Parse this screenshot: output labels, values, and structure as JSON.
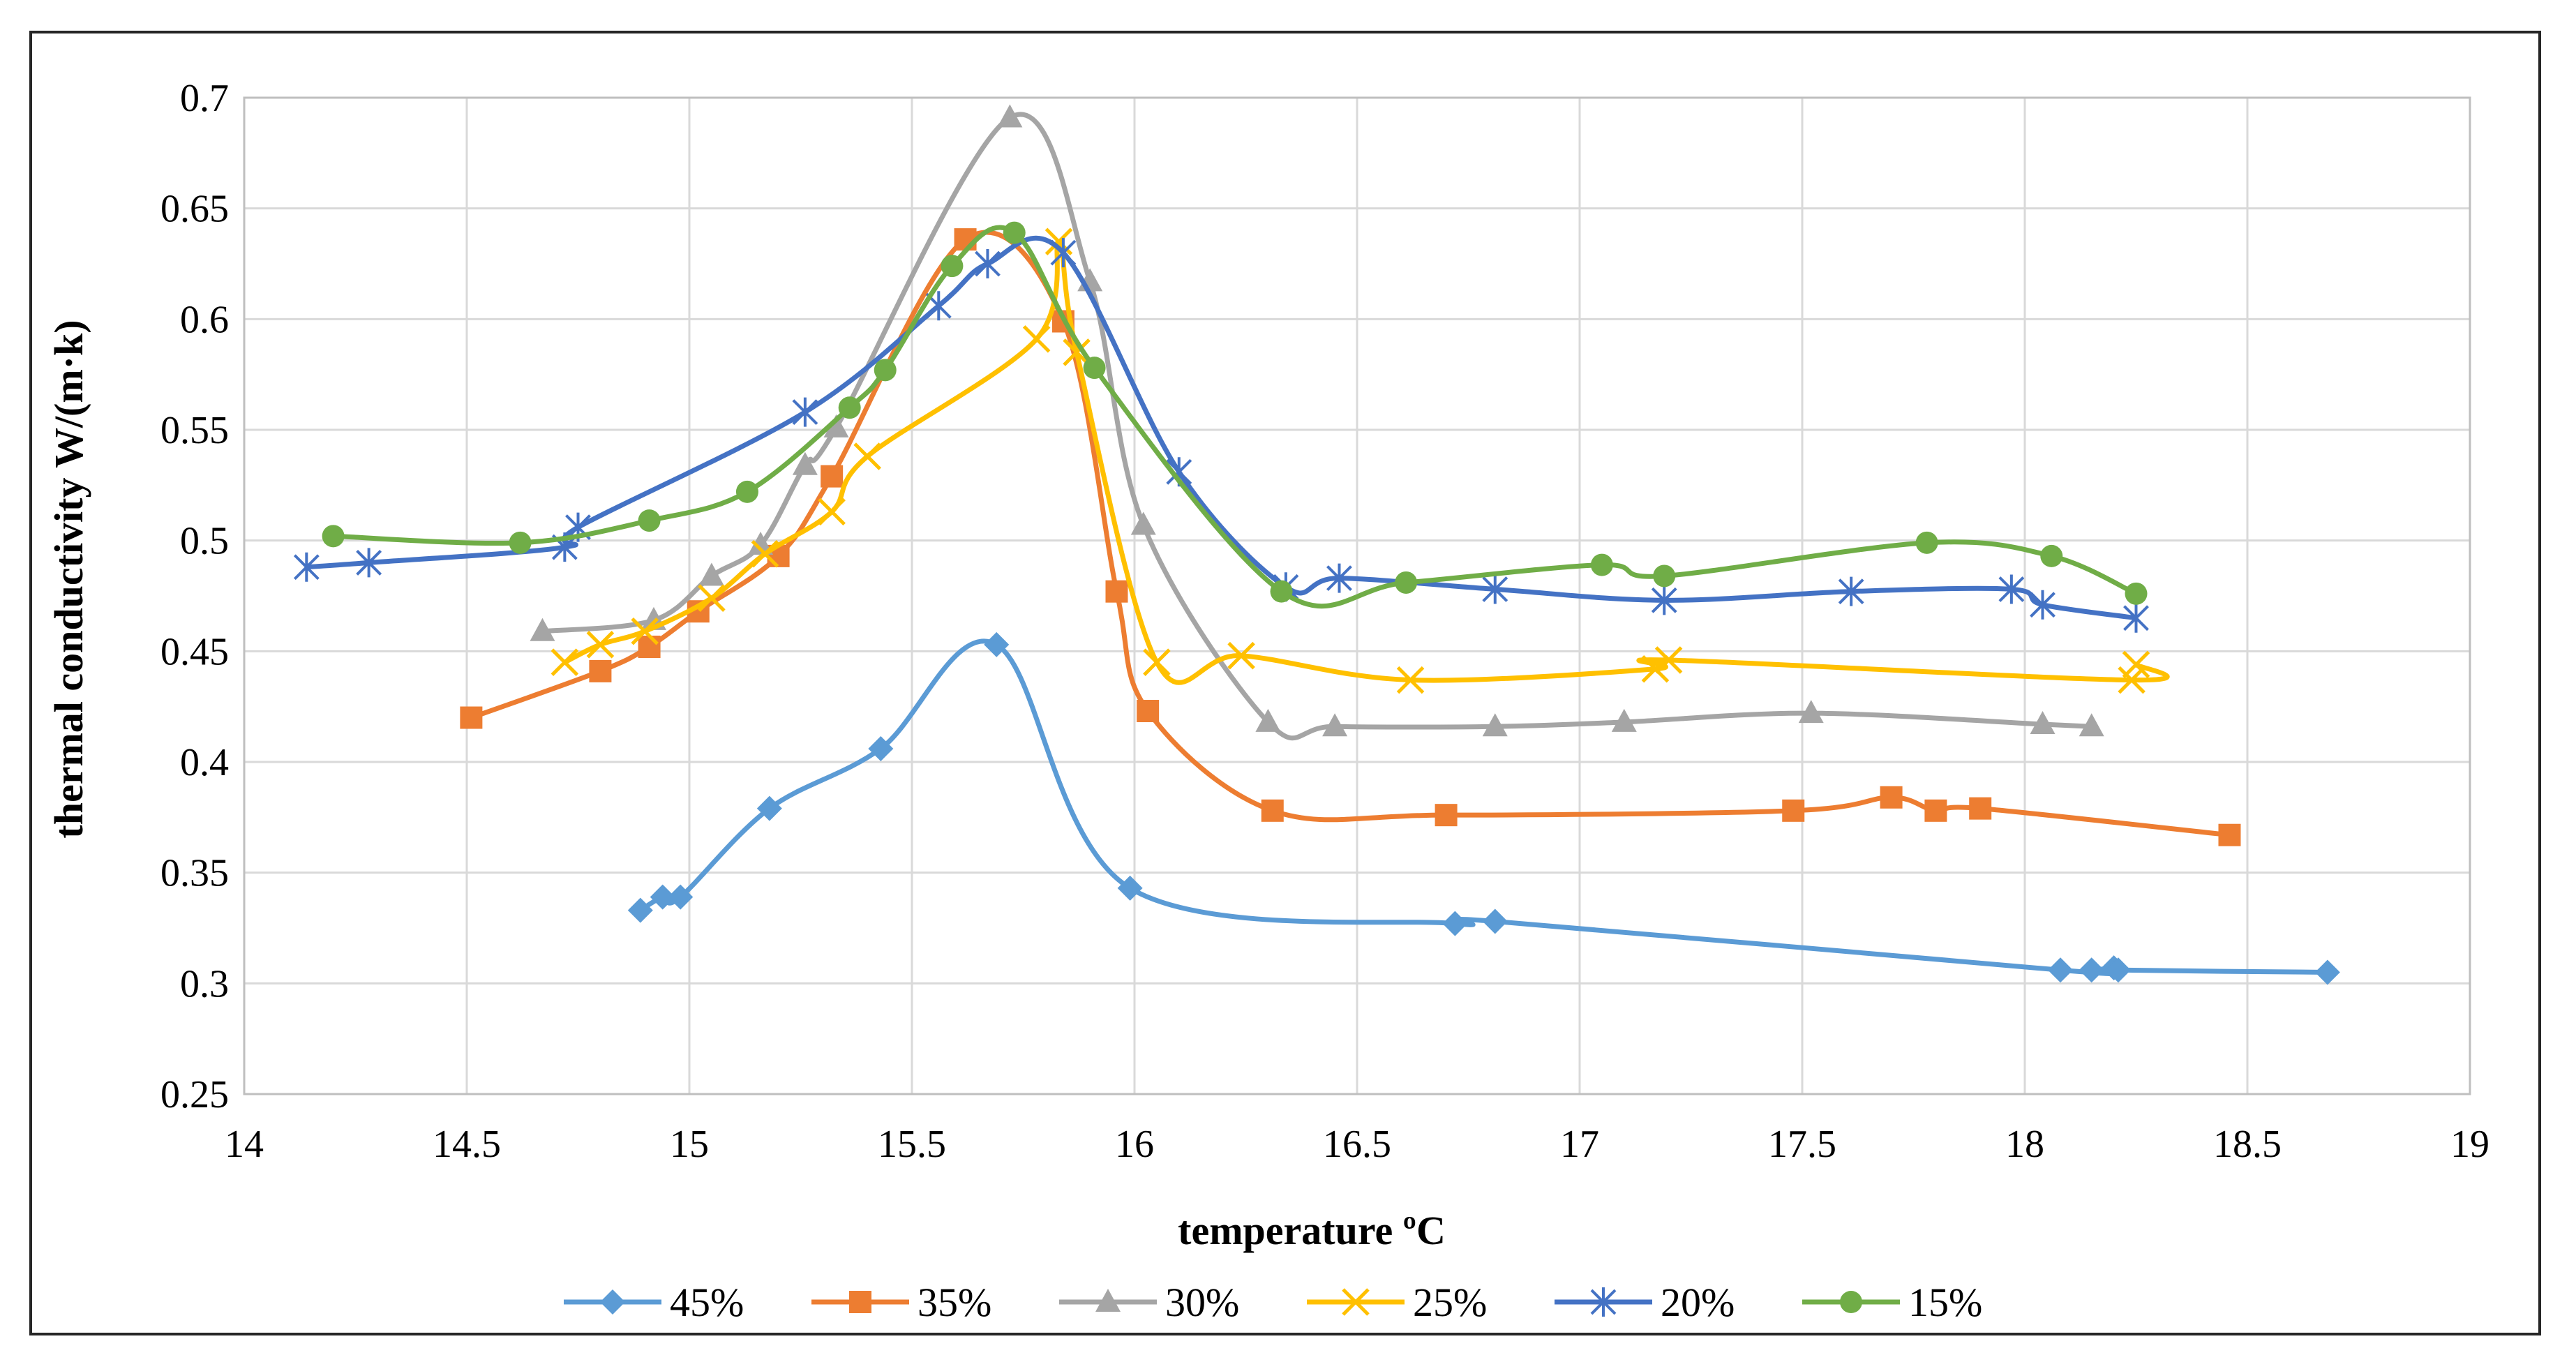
{
  "chart_data": {
    "type": "line",
    "title": "",
    "xlabel": "temperature ºC",
    "ylabel": "thermal conductivity W/(m·k)",
    "xlim": [
      14,
      19
    ],
    "ylim": [
      0.25,
      0.7
    ],
    "xticks": [
      14,
      14.5,
      15,
      15.5,
      16,
      16.5,
      17,
      17.5,
      18,
      18.5,
      19
    ],
    "xtick_labels": [
      "14",
      "14.5",
      "15",
      "15.5",
      "16",
      "16.5",
      "17",
      "17.5",
      "18",
      "18.5",
      "19"
    ],
    "yticks": [
      0.25,
      0.3,
      0.35,
      0.4,
      0.45,
      0.5,
      0.55,
      0.6,
      0.65,
      0.7
    ],
    "ytick_labels": [
      "0.25",
      "0.3",
      "0.35",
      "0.4",
      "0.45",
      "0.5",
      "0.55",
      "0.6",
      "0.65",
      "0.7"
    ],
    "grid": true,
    "legend_position": "bottom",
    "series": [
      {
        "name": "45%",
        "color": "#5B9BD5",
        "marker": "diamond",
        "x": [
          14.89,
          14.94,
          14.98,
          15.18,
          15.43,
          15.69,
          15.99,
          16.72,
          16.81,
          18.08,
          18.15,
          18.2,
          18.21,
          18.68
        ],
        "y": [
          0.333,
          0.339,
          0.339,
          0.379,
          0.406,
          0.453,
          0.343,
          0.327,
          0.328,
          0.306,
          0.306,
          0.307,
          0.306,
          0.305
        ]
      },
      {
        "name": "35%",
        "color": "#ED7D31",
        "marker": "square",
        "x": [
          14.51,
          14.8,
          14.91,
          15.02,
          15.2,
          15.32,
          15.62,
          15.84,
          15.96,
          16.03,
          16.31,
          16.7,
          17.48,
          17.7,
          17.8,
          17.9,
          18.46
        ],
        "y": [
          0.42,
          0.441,
          0.452,
          0.468,
          0.493,
          0.529,
          0.636,
          0.599,
          0.477,
          0.423,
          0.378,
          0.376,
          0.378,
          0.384,
          0.378,
          0.379,
          0.367
        ]
      },
      {
        "name": "30%",
        "color": "#A5A5A5",
        "marker": "triangle",
        "x": [
          14.67,
          14.92,
          15.05,
          15.16,
          15.26,
          15.33,
          15.72,
          15.9,
          16.02,
          16.3,
          16.45,
          16.81,
          17.1,
          17.52,
          18.04,
          18.15
        ],
        "y": [
          0.459,
          0.464,
          0.484,
          0.498,
          0.534,
          0.551,
          0.691,
          0.617,
          0.507,
          0.418,
          0.416,
          0.416,
          0.418,
          0.422,
          0.417,
          0.416
        ]
      },
      {
        "name": "25%",
        "color": "#FFC000",
        "marker": "x",
        "x": [
          14.72,
          14.8,
          14.9,
          15.05,
          15.17,
          15.32,
          15.4,
          15.78,
          15.83,
          15.87,
          16.05,
          16.24,
          16.62,
          17.17,
          17.2,
          18.24,
          18.25
        ],
        "y": [
          0.445,
          0.453,
          0.459,
          0.474,
          0.494,
          0.513,
          0.538,
          0.591,
          0.635,
          0.585,
          0.445,
          0.448,
          0.437,
          0.442,
          0.446,
          0.437,
          0.444
        ]
      },
      {
        "name": "20%",
        "color": "#4472C4",
        "marker": "star",
        "x": [
          14.14,
          14.28,
          14.72,
          14.75,
          15.26,
          15.56,
          15.67,
          15.84,
          16.1,
          16.34,
          16.46,
          16.81,
          17.19,
          17.61,
          17.97,
          18.04,
          18.25
        ],
        "y": [
          0.488,
          0.49,
          0.497,
          0.506,
          0.558,
          0.606,
          0.625,
          0.63,
          0.531,
          0.479,
          0.483,
          0.478,
          0.473,
          0.477,
          0.478,
          0.471,
          0.465
        ]
      },
      {
        "name": "15%",
        "color": "#70AD47",
        "marker": "circle",
        "x": [
          14.2,
          14.62,
          14.91,
          15.13,
          15.36,
          15.44,
          15.59,
          15.73,
          15.91,
          16.33,
          16.61,
          17.05,
          17.19,
          17.78,
          18.06,
          18.25
        ],
        "y": [
          0.502,
          0.499,
          0.509,
          0.522,
          0.56,
          0.577,
          0.624,
          0.639,
          0.578,
          0.477,
          0.481,
          0.489,
          0.484,
          0.499,
          0.493,
          0.476
        ]
      }
    ]
  }
}
